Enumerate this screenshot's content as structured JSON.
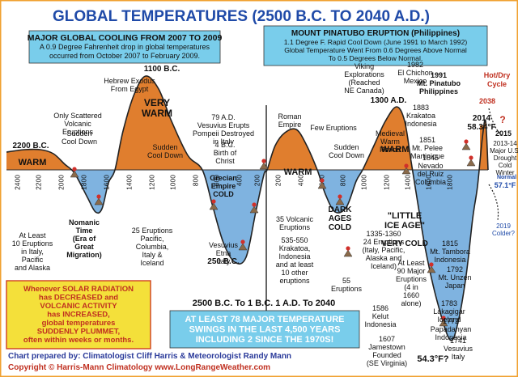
{
  "chart_data": {
    "type": "area",
    "title": "GLOBAL TEMPERATURES (2500 B.C. TO 2040 A.D.)",
    "xlabel": "",
    "ylabel": "",
    "x_ticks": [
      "2400",
      "2200",
      "2000",
      "1800",
      "1600",
      "1400",
      "1200",
      "1000",
      "800",
      "600",
      "400",
      "200",
      "200",
      "400",
      "600",
      "800",
      "1000",
      "1200",
      "1400",
      "1600",
      "1800"
    ],
    "xlim": [
      "2500 B.C.",
      "2040 A.D."
    ],
    "grid": false,
    "fill_colors": {
      "warm": "#e07e2e",
      "cold": "#7fb3e0"
    },
    "points": [
      {
        "x": "2500 B.C.",
        "label": ""
      },
      {
        "x": "2200 B.C.",
        "label": "2200 B.C.",
        "phase": "warm"
      },
      {
        "x": "2000 B.C.",
        "label": "",
        "phase": "crossing"
      },
      {
        "x": "1800 B.C.",
        "label": "",
        "phase": "cold"
      },
      {
        "x": "1500 B.C.",
        "label": "",
        "phase": "crossing"
      },
      {
        "x": "1100 B.C.",
        "label": "1100 B.C.",
        "phase": "warm peak"
      },
      {
        "x": "500 B.C.",
        "label": "",
        "phase": "crossing"
      },
      {
        "x": "250 B.C.",
        "label": "250 B.C.",
        "phase": "cold"
      },
      {
        "x": "1 A.D.",
        "label": "",
        "phase": "crossing"
      },
      {
        "x": "300 A.D.",
        "label": "",
        "phase": "warm"
      },
      {
        "x": "600 A.D.",
        "label": "",
        "phase": "cold"
      },
      {
        "x": "1300 A.D.",
        "label": "1300 A.D.",
        "phase": "warm peak"
      },
      {
        "x": "1741 A.D.",
        "label": "54.3°F?",
        "phase": "cold"
      },
      {
        "x": "2014 A.D.",
        "label": "58.34°F",
        "phase": "warm peak"
      }
    ],
    "region_labels": [
      "WARM",
      "VERY WARM",
      "WARM",
      "WARM",
      "WARM",
      "Nomanic Time (Era of Great Migration)",
      "Grecian Empire COLD",
      "DARK AGES COLD",
      "\"LITTLE ICE AGE\"",
      "VERY COLD"
    ]
  },
  "boxes": {
    "cooling": {
      "title": "MAJOR GLOBAL COOLING FROM 2007 TO 2009",
      "lines": [
        "A 0.9 Degree Fahrenheit drop in global temperatures",
        "occurred from October 2007 to February 2009."
      ]
    },
    "pinatubo": {
      "title": "MOUNT PINATUBO ERUPTION (Philippines)",
      "lines": [
        "1.1 Degree F. Rapid Cool Down (June 1991 to March 1992)",
        "Global Temperature Went From 0.6 Degrees Above Normal",
        "To 0.5 Degrees Below Normal."
      ]
    },
    "solar": [
      "Whenever SOLAR RADIATION",
      "has DECREASED and",
      "VOLCANIC ACTIVITY",
      "has INCREASED,",
      "global temperatures",
      "SUDDENLY PLUMMET,",
      "often within weeks or months."
    ],
    "swings": [
      "AT LEAST 78 MAJOR TEMPERATURE",
      "SWINGS IN THE LAST 4,500 YEARS",
      "INCLUDING 2 SINCE THE 1970S!"
    ]
  },
  "footer": {
    "era_range": "2500 B.C. To 1 B.C.  1 A.D. To 2040",
    "credit": "Chart prepared by: Climatologist Cliff Harris & Meteorologist Randy Mann",
    "copyright": "Copyright © Harris-Mann Climatology  www.LongRangeWeather.com"
  },
  "annotations": {
    "hot_dry": [
      "Hot/Dry",
      "Cycle"
    ],
    "y2038": "2038",
    "qmark": "?",
    "items": [
      {
        "lines": [
          "2200 B.C."
        ],
        "bold": true,
        "size": 10
      },
      {
        "lines": [
          "Sudden",
          "Cool Down"
        ],
        "size": 9
      },
      {
        "lines": [
          "WARM"
        ],
        "bold": true,
        "size": 11
      },
      {
        "lines": [
          "Hebrew Exodus",
          "From Egypt"
        ],
        "size": 9
      },
      {
        "lines": [
          "Only Scattered",
          "Volcanic",
          "Eruptions"
        ],
        "size": 9
      },
      {
        "lines": [
          "1100 B.C."
        ],
        "bold": true,
        "size": 10
      },
      {
        "lines": [
          "VERY",
          "WARM"
        ],
        "bold": true,
        "size": 12
      },
      {
        "lines": [
          "Sudden",
          "Cool Down"
        ],
        "size": 9
      },
      {
        "lines": [
          "79 A.D.",
          "Vesuvius Erupts",
          "Pompeii Destroyed",
          "in Italy"
        ],
        "size": 9
      },
      {
        "lines": [
          "4 B.C.",
          "Birth of",
          "Christ"
        ],
        "size": 9
      },
      {
        "lines": [
          "Roman",
          "Empire"
        ],
        "size": 9
      },
      {
        "lines": [
          "WARM"
        ],
        "bold": true,
        "size": 11
      },
      {
        "lines": [
          "Viking",
          "Explorations",
          "(Reached",
          "NE Canada)"
        ],
        "size": 9
      },
      {
        "lines": [
          "Few Eruptions"
        ],
        "size": 9
      },
      {
        "lines": [
          "Sudden",
          "Cool Down"
        ],
        "size": 9
      },
      {
        "lines": [
          "1300 A.D."
        ],
        "bold": true,
        "size": 10
      },
      {
        "lines": [
          "WARM"
        ],
        "bold": true,
        "size": 11
      },
      {
        "lines": [
          "Medieval",
          "Warm",
          "Period"
        ],
        "size": 9
      },
      {
        "lines": [
          "1982",
          "El Chichon",
          "Mexico"
        ],
        "size": 9
      },
      {
        "lines": [
          "1991",
          "Mt. Pinatubo",
          "Philippines"
        ],
        "bold": true,
        "size": 9
      },
      {
        "lines": [
          "1883",
          "Krakatoa",
          "Indonesia"
        ],
        "size": 9
      },
      {
        "lines": [
          "1851",
          "Mt. Pelee",
          "Martinique"
        ],
        "size": 9
      },
      {
        "lines": [
          "1845",
          "Nevado",
          "del Ruiz",
          "Columbia"
        ],
        "size": 9
      },
      {
        "lines": [
          "2014",
          "58.34°F"
        ],
        "bold": true,
        "size": 10
      },
      {
        "lines": [
          "2015"
        ],
        "bold": true,
        "size": 9
      },
      {
        "lines": [
          "2013-14",
          "Major U.S.",
          "Drought",
          "Cold",
          "Winter"
        ],
        "size": 8
      },
      {
        "lines": [
          "57.1°F"
        ],
        "bold": true,
        "size": 9,
        "color": "#1f4aa8"
      },
      {
        "lines": [
          "Normal"
        ],
        "bold": true,
        "size": 7,
        "color": "#1f4aa8"
      },
      {
        "lines": [
          "2019",
          "Colder?"
        ],
        "size": 8,
        "color": "#1f4aa8"
      },
      {
        "lines": [
          "At Least",
          "10 Eruptions",
          "in Italy,",
          "Pacific",
          "and Alaska"
        ],
        "size": 9
      },
      {
        "lines": [
          "Nomanic",
          "Time",
          "(Era of",
          "Great",
          "Migration)"
        ],
        "bold": true,
        "size": 9
      },
      {
        "lines": [
          "25 Eruptions",
          "Pacific,",
          "Columbia,",
          "Italy &",
          "Iceland"
        ],
        "size": 9
      },
      {
        "lines": [
          "Grecian",
          "Empire",
          "COLD"
        ],
        "bold": true,
        "size": 9
      },
      {
        "lines": [
          "Vesuvius",
          "Etna",
          "Italy"
        ],
        "size": 9
      },
      {
        "lines": [
          "250 B.C."
        ],
        "bold": true,
        "size": 10
      },
      {
        "lines": [
          "35 Volcanic",
          "Eruptions"
        ],
        "size": 9
      },
      {
        "lines": [
          "535-550",
          "Krakatoa,",
          "Indonesia",
          "and at least",
          "10 other",
          "eruptions"
        ],
        "size": 9
      },
      {
        "lines": [
          "DARK",
          "AGES",
          "COLD"
        ],
        "bold": true,
        "size": 10
      },
      {
        "lines": [
          "55",
          "Eruptions"
        ],
        "size": 9
      },
      {
        "lines": [
          "1335-1360",
          "24 Eruptions",
          "(Italy, Pacific,",
          "Alaska and",
          "Iceland)"
        ],
        "size": 9
      },
      {
        "lines": [
          "\"LITTLE",
          "ICE AGE\""
        ],
        "bold": true,
        "size": 11
      },
      {
        "lines": [
          "VERY COLD"
        ],
        "bold": true,
        "size": 10
      },
      {
        "lines": [
          "At Least",
          "90 Major",
          "Eruptions",
          "(4 in",
          "1660",
          "alone)"
        ],
        "size": 9
      },
      {
        "lines": [
          "1815",
          "Mt. Tambora",
          "Indonesia"
        ],
        "size": 9
      },
      {
        "lines": [
          "1792",
          "Mt. Unzen",
          "Japan"
        ],
        "size": 9
      },
      {
        "lines": [
          "1783",
          "Lakagigar",
          "Iceland"
        ],
        "size": 9
      },
      {
        "lines": [
          "1772",
          "Papadanyan",
          "Indonesia"
        ],
        "size": 9
      },
      {
        "lines": [
          "1741",
          "Vesuvius",
          "Italy"
        ],
        "size": 9
      },
      {
        "lines": [
          "1586",
          "Kelut",
          "Indonesia"
        ],
        "size": 9
      },
      {
        "lines": [
          "1607",
          "Jamestown",
          "Founded",
          "(SE Virginia)"
        ],
        "size": 9
      },
      {
        "lines": [
          "54.3°F?"
        ],
        "bold": true,
        "size": 11
      }
    ]
  }
}
